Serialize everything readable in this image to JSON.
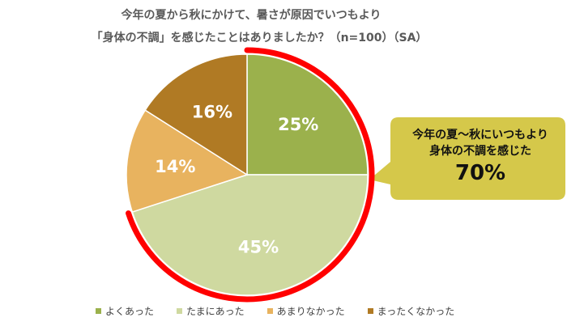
{
  "chart_data": {
    "type": "pie",
    "title": [
      "今年の夏から秋にかけて、暑さが原因でいつもより",
      "「身体の不調」を感じたことはありましたか？（n=100）（SA）"
    ],
    "categories": [
      "よくあった",
      "たまにあった",
      "あまりなかった",
      "まったくなかった"
    ],
    "values": [
      25,
      45,
      14,
      16
    ],
    "labels": [
      "25%",
      "45%",
      "14%",
      "16%"
    ],
    "colors": [
      "#9bb14c",
      "#cfd9a0",
      "#e8b35f",
      "#b07a24"
    ],
    "highlight": {
      "lines": [
        "今年の夏～秋にいつもより",
        "身体の不調を感じた"
      ],
      "value": "70%",
      "fraction": 0.7,
      "color": "#ff0000",
      "bubble_color": "#d5c84a"
    },
    "legend_position": "bottom"
  }
}
